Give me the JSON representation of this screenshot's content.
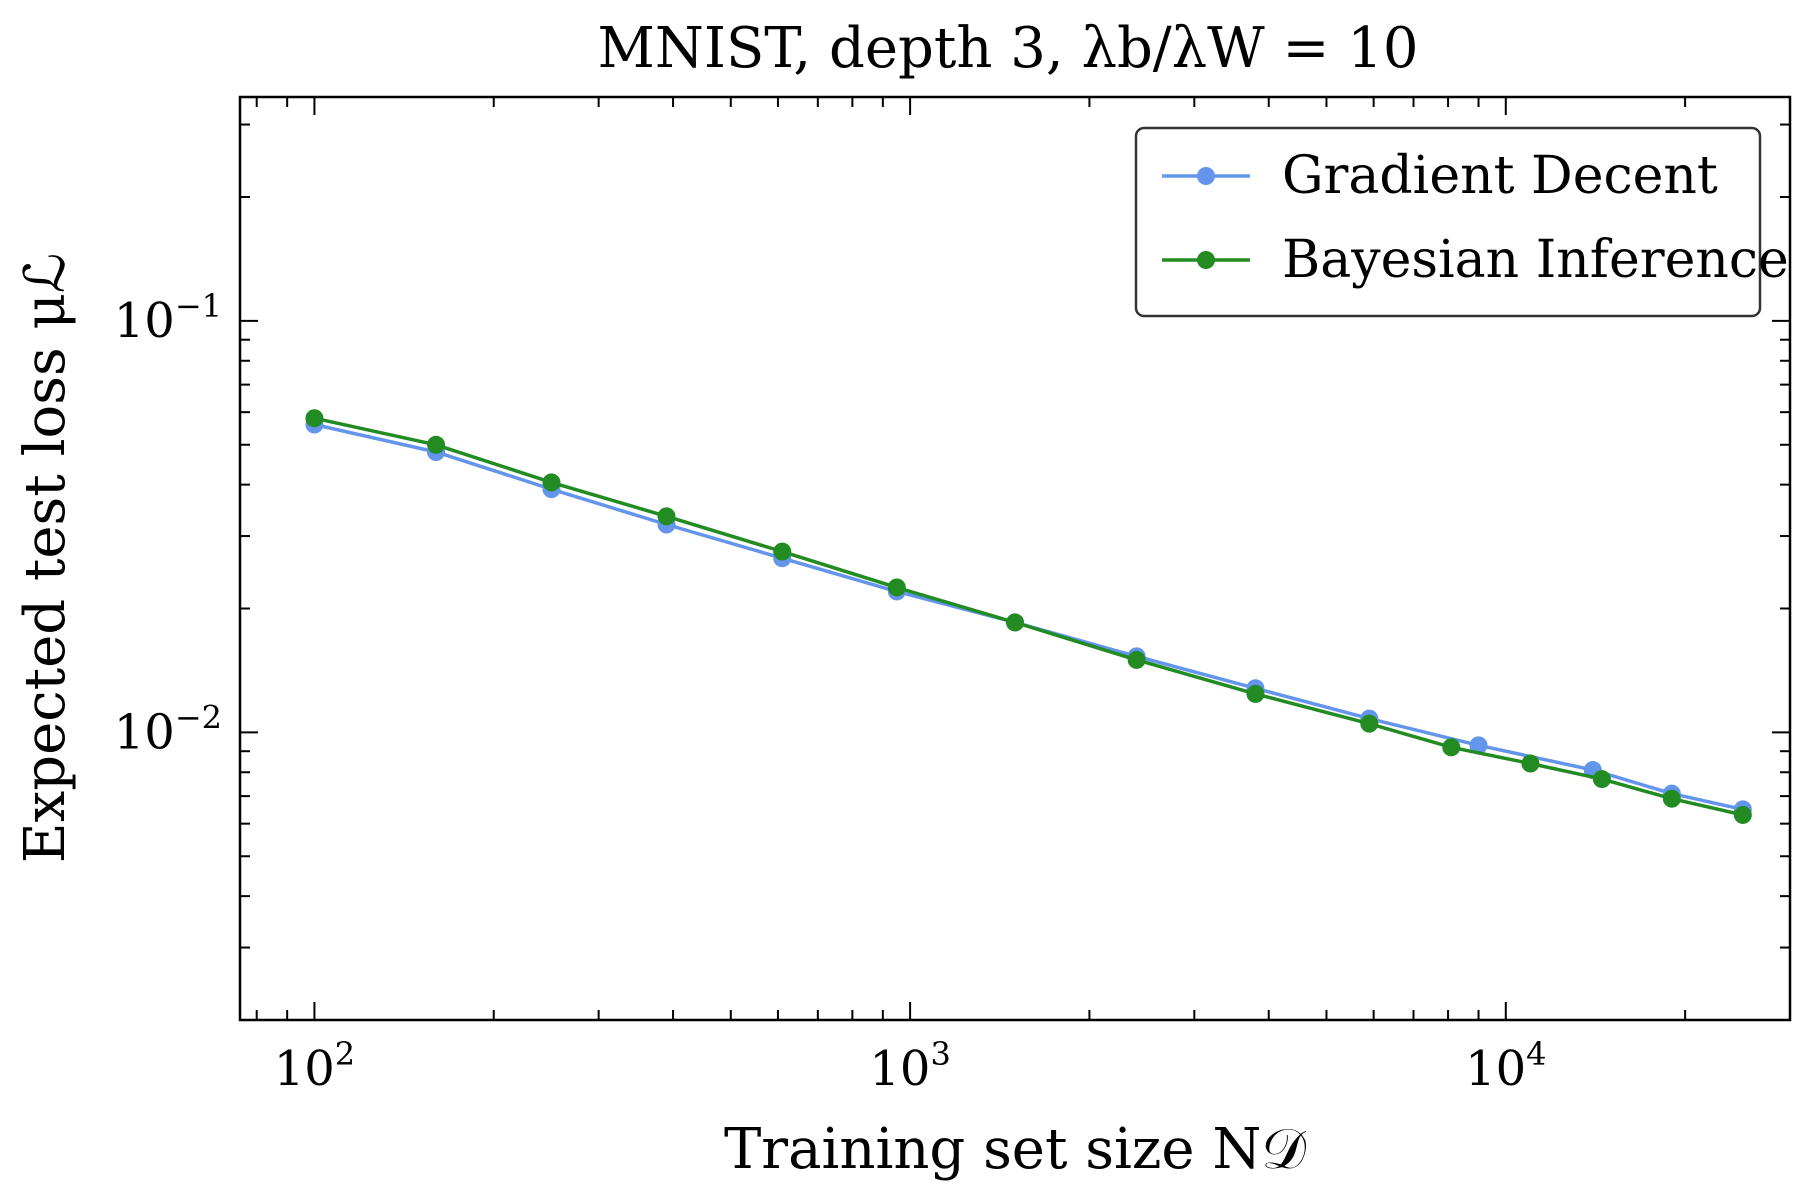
{
  "chart_data": {
    "type": "line",
    "title": "MNIST, depth 3, λb/λW = 10",
    "xlabel": "Training set size N𝒟",
    "ylabel": "Expected test loss μℒ",
    "xscale": "log",
    "yscale": "log",
    "xlim": [
      75,
      30000
    ],
    "ylim": [
      0.002,
      0.35
    ],
    "xticks": [
      {
        "base": "10",
        "exp": "2"
      },
      {
        "base": "10",
        "exp": "3"
      },
      {
        "base": "10",
        "exp": "4"
      }
    ],
    "yticks": [
      {
        "base": "10",
        "exp": "−1"
      },
      {
        "base": "10",
        "exp": "−2"
      }
    ],
    "legend_position": "top-right",
    "grid": false,
    "series": [
      {
        "name": "Gradient Decent",
        "color": "#6495ED",
        "x": [
          100,
          160,
          250,
          390,
          610,
          950,
          1500,
          2400,
          3800,
          5900,
          9000,
          14000,
          19000,
          25000
        ],
        "y": [
          0.056,
          0.048,
          0.039,
          0.032,
          0.0265,
          0.022,
          0.0185,
          0.0153,
          0.0128,
          0.0108,
          0.0093,
          0.0081,
          0.0071,
          0.0065
        ]
      },
      {
        "name": "Bayesian Inference",
        "color": "#228B22",
        "x": [
          100,
          160,
          250,
          390,
          610,
          950,
          1500,
          2400,
          3800,
          5900,
          8100,
          11000,
          14500,
          19000,
          25000
        ],
        "y": [
          0.058,
          0.05,
          0.0405,
          0.0335,
          0.0275,
          0.0225,
          0.0185,
          0.015,
          0.0124,
          0.0105,
          0.0092,
          0.0084,
          0.0077,
          0.0069,
          0.0063
        ]
      }
    ]
  }
}
